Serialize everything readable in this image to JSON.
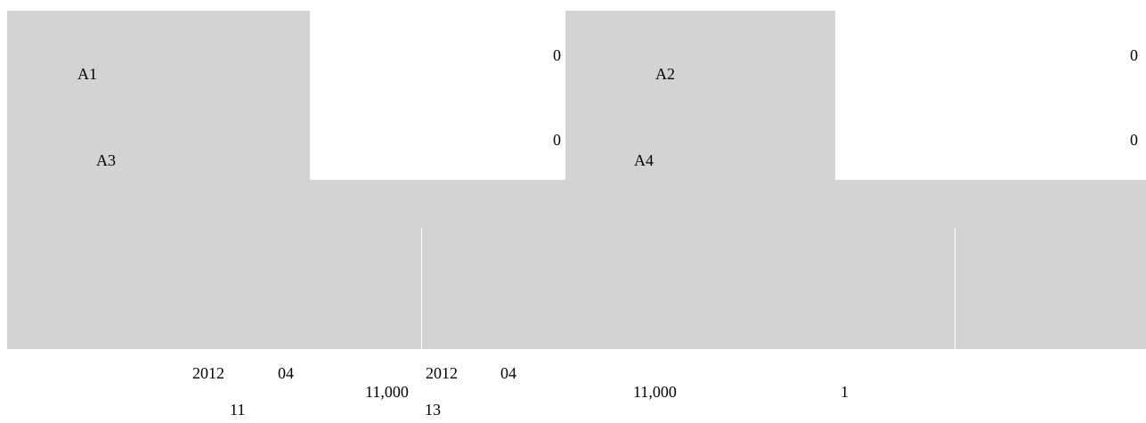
{
  "colors": {
    "panel_gray": "#d3d3d3",
    "background": "#ffffff",
    "text": "#000000"
  },
  "upper_form": {
    "left_block": {
      "cell_1_label": "A1",
      "cell_1_value": "0",
      "cell_3_label": "A3",
      "cell_3_value": "0"
    },
    "right_block": {
      "cell_2_label": "A2",
      "cell_2_value": "0",
      "cell_4_label": "A4",
      "cell_4_value": "0"
    }
  },
  "detail_row": {
    "col1_year": "2012",
    "col1_month": "04",
    "col1_day": "11",
    "col1_amount": "11,000",
    "col2_year": "2012",
    "col2_month": "04",
    "col2_day": "13",
    "col2_amount": "11,000",
    "col3_count": "1"
  }
}
